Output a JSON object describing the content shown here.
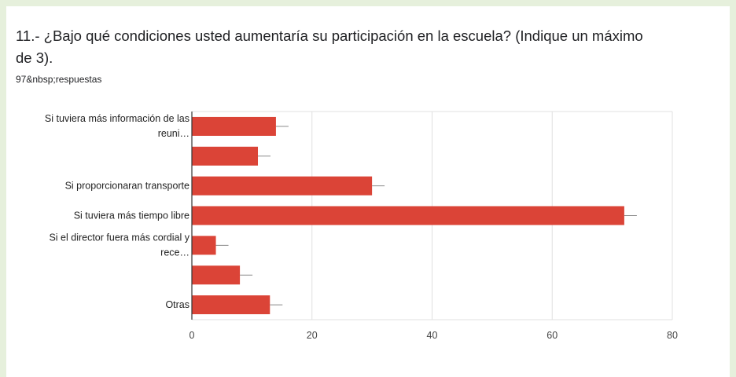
{
  "question": {
    "title_line1": "11.- ¿Bajo qué condiciones usted aumentaría su participación en la escuela? (Indique un máximo",
    "title_line2": "de 3).",
    "responses": "97&nbsp;respuestas"
  },
  "colors": {
    "bar": "#db4437",
    "background": "#e6f0dc"
  },
  "chart_data": {
    "type": "bar",
    "orientation": "horizontal",
    "categories": [
      [
        "Si tuviera más información de las",
        "reuni…"
      ],
      [],
      [
        "Si proporcionaran transporte"
      ],
      [
        "Si tuviera más tiempo libre"
      ],
      [
        "Si el director fuera más cordial y",
        "rece…"
      ],
      [],
      [
        "Otras"
      ]
    ],
    "values": [
      14,
      11,
      30,
      72,
      4,
      8,
      13
    ],
    "xlim": [
      0,
      80
    ],
    "xticks": [
      "0",
      "20",
      "40",
      "60",
      "80"
    ],
    "grid": true,
    "legend": "none"
  }
}
